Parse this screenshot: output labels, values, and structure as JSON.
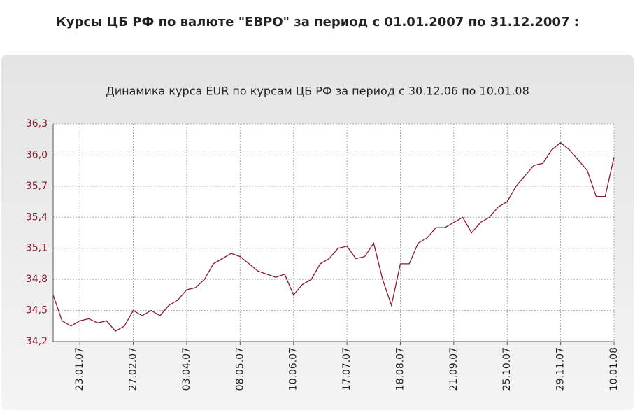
{
  "page_title": "Курсы ЦБ РФ по валюте \"ЕВРО\" за период с 01.01.2007 по 31.12.2007 :",
  "chart_data": {
    "type": "line",
    "title": "Динамика курса EUR по курсам ЦБ РФ за период с 30.12.06 по 10.01.08",
    "categories": [
      null,
      null,
      null,
      "23.01.07",
      null,
      null,
      null,
      null,
      null,
      "27.02.07",
      null,
      null,
      null,
      null,
      null,
      "03.04.07",
      null,
      null,
      null,
      null,
      null,
      "08.05.07",
      null,
      null,
      null,
      null,
      null,
      "10.06.07",
      null,
      null,
      null,
      null,
      null,
      "17.07.07",
      null,
      null,
      null,
      null,
      null,
      "18.08.07",
      null,
      null,
      null,
      null,
      null,
      "21.09.07",
      null,
      null,
      null,
      null,
      null,
      "25.10.07",
      null,
      null,
      null,
      null,
      null,
      "29.11.07",
      null,
      null,
      null,
      null,
      null,
      "10.01.08"
    ],
    "series": [
      {
        "name": "EUR",
        "color": "#8b1a2b",
        "values": [
          34.65,
          34.4,
          34.35,
          34.4,
          34.42,
          34.38,
          34.4,
          34.3,
          34.35,
          34.5,
          34.45,
          34.5,
          34.45,
          34.55,
          34.6,
          34.7,
          34.72,
          34.8,
          34.95,
          35.0,
          35.05,
          35.02,
          34.95,
          34.88,
          34.85,
          34.82,
          34.85,
          34.65,
          34.75,
          34.8,
          34.95,
          35.0,
          35.1,
          35.12,
          35.0,
          35.02,
          35.15,
          34.8,
          34.55,
          34.95,
          34.95,
          35.15,
          35.2,
          35.3,
          35.3,
          35.35,
          35.4,
          35.25,
          35.35,
          35.4,
          35.5,
          35.55,
          35.7,
          35.8,
          35.9,
          35.92,
          36.05,
          36.12,
          36.05,
          35.95,
          35.85,
          35.6,
          35.6,
          35.98
        ]
      }
    ],
    "ylim": [
      34.2,
      36.3
    ],
    "yticks": [
      {
        "value": 34.2,
        "label": "34,2"
      },
      {
        "value": 34.5,
        "label": "34,5"
      },
      {
        "value": 34.8,
        "label": "34,8"
      },
      {
        "value": 35.1,
        "label": "35,1"
      },
      {
        "value": 35.4,
        "label": "35,4"
      },
      {
        "value": 35.7,
        "label": "35,7"
      },
      {
        "value": 36.0,
        "label": "36,0"
      },
      {
        "value": 36.3,
        "label": "36,3"
      }
    ],
    "grid": true
  }
}
